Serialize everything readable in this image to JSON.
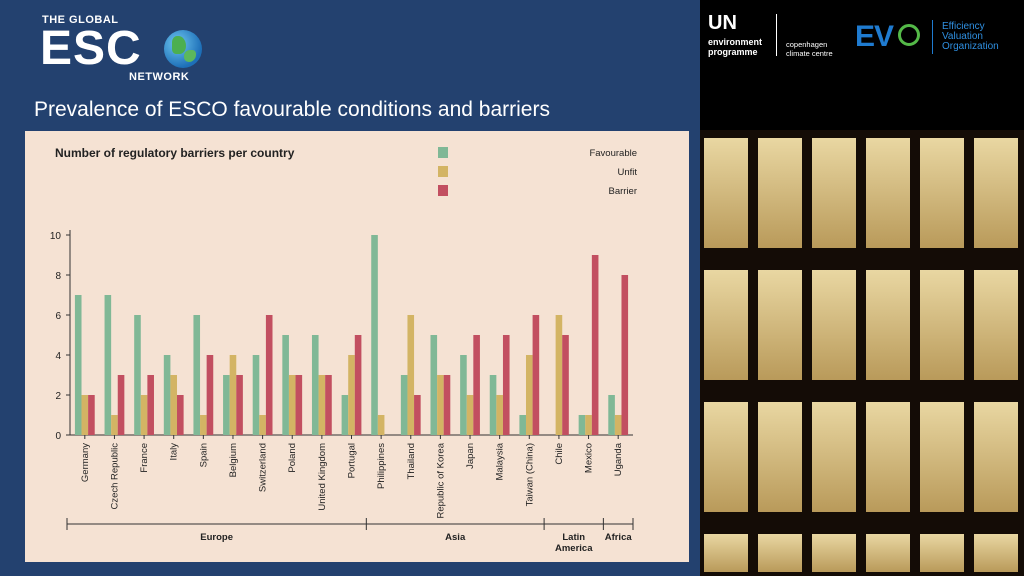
{
  "logo": {
    "top_text": "THE GLOBAL",
    "main_text": "ESC",
    "bottom_text": "NETWORK"
  },
  "slide_title": "Prevalence of ESCO favourable conditions and barriers",
  "partners": {
    "un_main": "UN",
    "un_sub_1": "environment",
    "un_sub_2": "programme",
    "ccc_1": "copenhagen",
    "ccc_2": "climate centre",
    "evo_mark": "EV",
    "evo_1": "Efficiency",
    "evo_2": "Valuation",
    "evo_3": "Organization"
  },
  "colors": {
    "favourable": "#80b896",
    "unfit": "#d3b464",
    "barrier": "#c24f60"
  },
  "chart_data": {
    "type": "bar",
    "title": "Number of regulatory barriers per country",
    "categories": [
      "Germany",
      "Czech Republic",
      "France",
      "Italy",
      "Spain",
      "Belgium",
      "Switzerland",
      "Poland",
      "United Kingdom",
      "Portugal",
      "Philippines",
      "Thailand",
      "Republic of Korea",
      "Japan",
      "Malaysia",
      "Taiwan (China)",
      "Chile",
      "Mexico",
      "Uganda"
    ],
    "series": [
      {
        "name": "Favourable",
        "values": [
          7,
          7,
          6,
          4,
          6,
          3,
          4,
          5,
          5,
          2,
          10,
          3,
          5,
          4,
          3,
          1,
          0,
          1,
          2
        ]
      },
      {
        "name": "Unfit",
        "values": [
          2,
          1,
          2,
          3,
          1,
          4,
          1,
          3,
          3,
          4,
          1,
          6,
          3,
          2,
          2,
          4,
          6,
          1,
          1
        ]
      },
      {
        "name": "Barrier",
        "values": [
          2,
          3,
          3,
          2,
          4,
          3,
          6,
          3,
          3,
          5,
          0,
          2,
          3,
          5,
          5,
          6,
          5,
          9,
          8
        ]
      }
    ],
    "ylim": [
      0,
      10
    ],
    "yticks": [
      "0",
      "2",
      "4",
      "6",
      "8",
      "10"
    ],
    "legend_position": "top-right",
    "groups": [
      {
        "name": "Europe",
        "start": 0,
        "end": 9
      },
      {
        "name": "Asia",
        "start": 10,
        "end": 15
      },
      {
        "name": "Latin America",
        "start": 16,
        "end": 17
      },
      {
        "name": "Africa",
        "start": 18,
        "end": 18
      }
    ]
  }
}
